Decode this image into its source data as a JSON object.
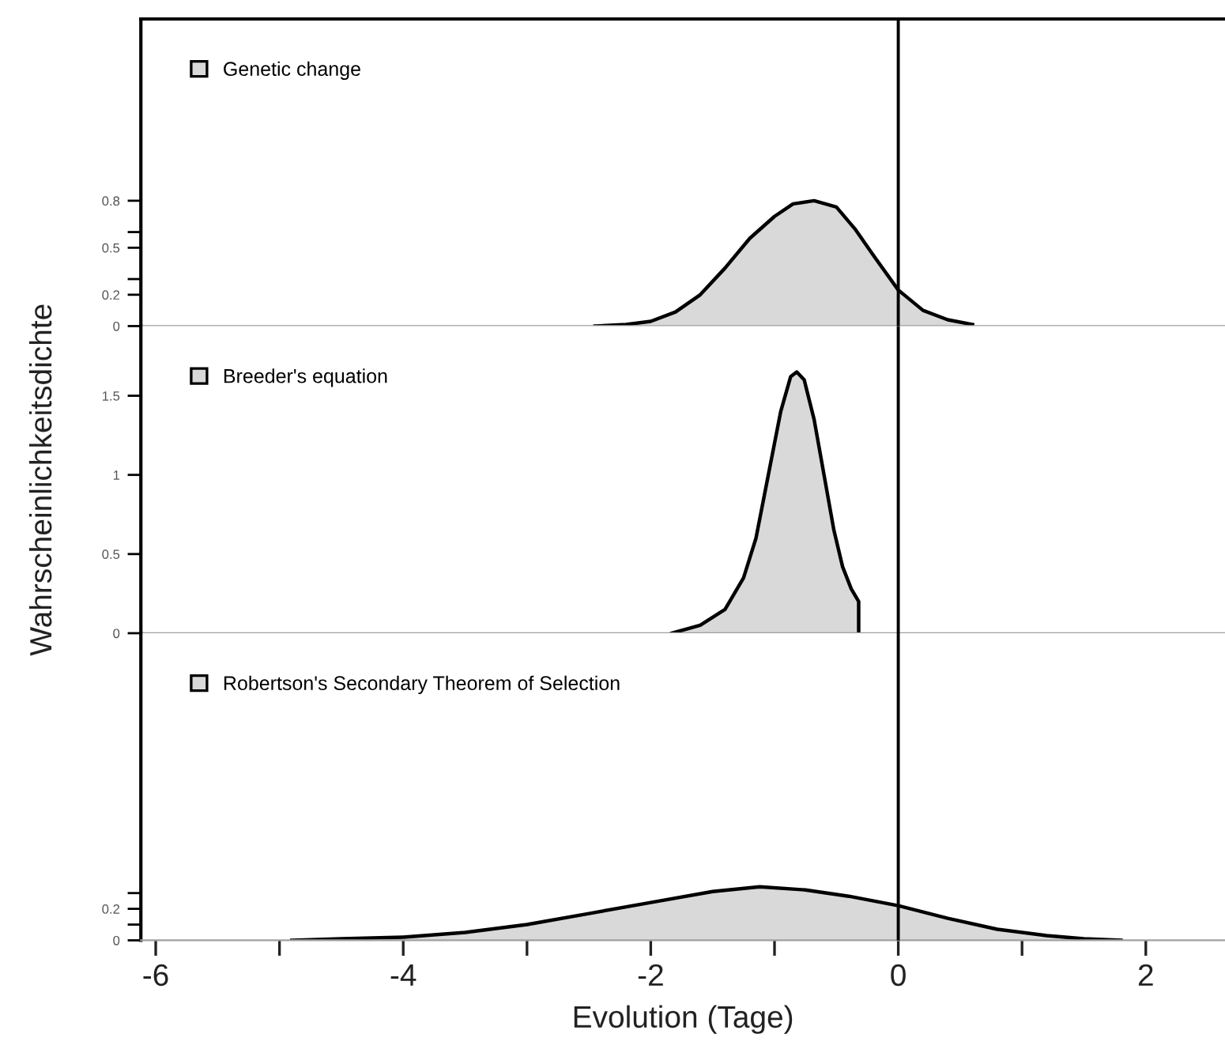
{
  "chart_data": [
    {
      "type": "area",
      "xlim": [
        -6.12,
        2.64
      ],
      "ylim": [
        0,
        1.96
      ],
      "yticks": [
        0,
        0.2,
        {
          "value": 0.3,
          "label": null
        },
        0.5,
        {
          "value": 0.6,
          "label": null
        },
        0.8
      ],
      "tick_labels": "y",
      "legend": "top left",
      "grid": false,
      "series": [
        {
          "name": "Genetic change",
          "color": "#d9d9d9",
          "x": [
            -2.45,
            -2.2,
            -2.0,
            -1.8,
            -1.6,
            -1.4,
            -1.2,
            -1.0,
            -0.85,
            -0.68,
            -0.5,
            -0.35,
            -0.2,
            0,
            0.2,
            0.4,
            0.6
          ],
          "values": [
            0,
            0.01,
            0.03,
            0.09,
            0.2,
            0.37,
            0.56,
            0.7,
            0.78,
            0.8,
            0.76,
            0.62,
            0.45,
            0.23,
            0.1,
            0.04,
            0.01
          ]
        }
      ],
      "ref_lines": [
        {
          "axis": "x",
          "value": 0,
          "color": "#000000"
        }
      ]
    },
    {
      "type": "area",
      "xlim": [
        -6.12,
        2.64
      ],
      "ylim": [
        0,
        1.94
      ],
      "yticks": [
        0,
        0.5,
        1,
        1.5
      ],
      "tick_labels": "y",
      "legend": "top left",
      "grid": false,
      "ylabel": "Wahrscheinlichkeitsdichte",
      "series": [
        {
          "name": "Breeder's equation",
          "color": "#d9d9d9",
          "x": [
            -1.83,
            -1.6,
            -1.4,
            -1.25,
            -1.15,
            -1.05,
            -0.95,
            -0.87,
            -0.82,
            -0.76,
            -0.68,
            -0.6,
            -0.52,
            -0.45,
            -0.38,
            -0.32,
            -0.32
          ],
          "values": [
            0,
            0.05,
            0.15,
            0.35,
            0.6,
            1.0,
            1.4,
            1.62,
            1.65,
            1.6,
            1.35,
            1.0,
            0.65,
            0.42,
            0.28,
            0.2,
            0
          ]
        }
      ],
      "ref_lines": [
        {
          "axis": "x",
          "value": 0,
          "color": "#000000"
        }
      ]
    },
    {
      "type": "area",
      "xlim": [
        -6.12,
        2.64
      ],
      "ylim": [
        0,
        1.95
      ],
      "yticks": [
        0,
        {
          "value": 0.1,
          "label": null
        },
        0.2,
        {
          "value": 0.3,
          "label": null
        }
      ],
      "xticks": [
        -6,
        {
          "value": -5,
          "label": null
        },
        -4,
        {
          "value": -3,
          "label": null
        },
        -2,
        {
          "value": -1,
          "label": null
        },
        0,
        {
          "value": 1,
          "label": null
        },
        2
      ],
      "legend": "top left",
      "grid": false,
      "xlabel": "Evolution (Tage)",
      "series": [
        {
          "name": "Robertson's Secondary Theorem of Selection",
          "color": "#d9d9d9",
          "x": [
            -4.9,
            -4.5,
            -4,
            -3.5,
            -3,
            -2.5,
            -2,
            -1.5,
            -1.12,
            -0.75,
            -0.4,
            0,
            0.4,
            0.8,
            1.2,
            1.5,
            1.8
          ],
          "values": [
            0,
            0.01,
            0.02,
            0.05,
            0.1,
            0.17,
            0.24,
            0.31,
            0.34,
            0.32,
            0.28,
            0.22,
            0.14,
            0.07,
            0.03,
            0.01,
            0
          ]
        }
      ],
      "ref_lines": [
        {
          "axis": "x",
          "value": 0,
          "color": "#000000"
        }
      ]
    }
  ]
}
